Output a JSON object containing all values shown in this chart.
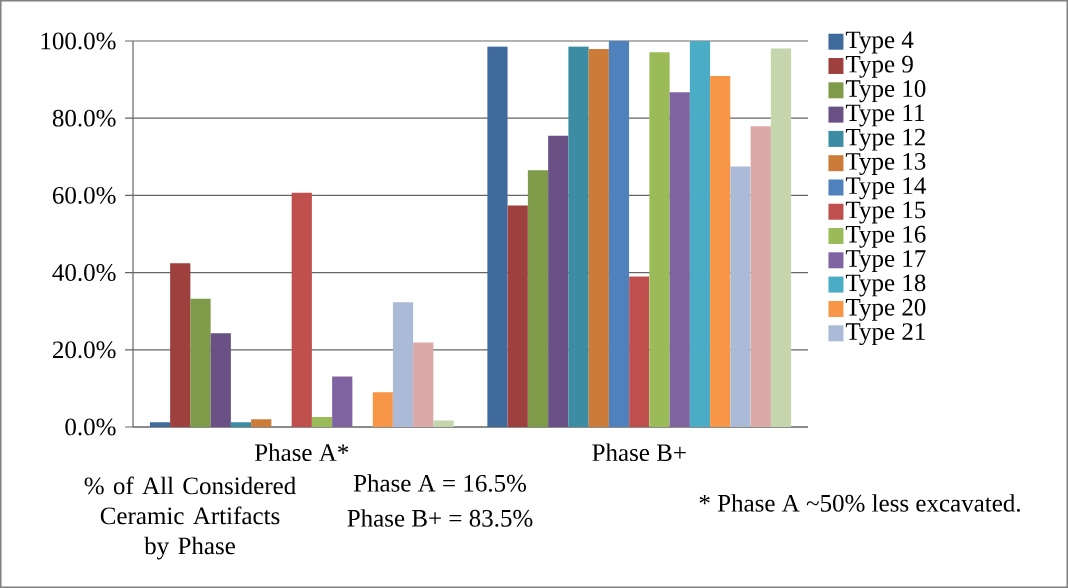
{
  "chart_data": {
    "type": "bar",
    "categories": [
      "Phase A*",
      "Phase B+"
    ],
    "ylim": [
      0,
      100
    ],
    "yticks": [
      {
        "value": 0,
        "label": "0.0%"
      },
      {
        "value": 20,
        "label": "20.0%"
      },
      {
        "value": 40,
        "label": "40.0%"
      },
      {
        "value": 60,
        "label": "60.0%"
      },
      {
        "value": 80,
        "label": "80.0%"
      },
      {
        "value": 100,
        "label": "100.0%"
      }
    ],
    "grid": "y",
    "legend": "right",
    "series": [
      {
        "name": "Type 4",
        "color": "#3f6a9c",
        "values": [
          1.2,
          98.6
        ]
      },
      {
        "name": "Type 9",
        "color": "#9e413e",
        "values": [
          42.4,
          57.4
        ]
      },
      {
        "name": "Type 10",
        "color": "#7f9a48",
        "values": [
          33.2,
          66.5
        ]
      },
      {
        "name": "Type 11",
        "color": "#695185",
        "values": [
          24.3,
          75.5
        ]
      },
      {
        "name": "Type 12",
        "color": "#3c8da3",
        "values": [
          1.2,
          98.6
        ]
      },
      {
        "name": "Type 13",
        "color": "#cc7b38",
        "values": [
          2.0,
          97.9
        ]
      },
      {
        "name": "Type 14",
        "color": "#4f81bd",
        "values": [
          0,
          100
        ]
      },
      {
        "name": "Type 15",
        "color": "#c0504d",
        "values": [
          60.7,
          39.0
        ]
      },
      {
        "name": "Type 16",
        "color": "#9bbb59",
        "values": [
          2.6,
          97.1
        ]
      },
      {
        "name": "Type 17",
        "color": "#8064a2",
        "values": [
          13.1,
          86.7
        ]
      },
      {
        "name": "Type 18",
        "color": "#4bacc6",
        "values": [
          0,
          100
        ]
      },
      {
        "name": "Type 20",
        "color": "#f79646",
        "values": [
          9.0,
          90.9
        ]
      },
      {
        "name": "Type 21",
        "color": "#aabad7",
        "values": [
          32.3,
          67.5
        ]
      },
      {
        "color": "#dba9a8",
        "values": [
          21.9,
          77.9
        ]
      },
      {
        "color": "#c6d6ac",
        "values": [
          1.7,
          98.1
        ]
      }
    ],
    "annotations": [
      "% of All Considered Ceramic Artifacts by Phase",
      "Phase A = 16.5%",
      "Phase B+ = 83.5%",
      "* Phase A ~50% less excavated."
    ]
  }
}
